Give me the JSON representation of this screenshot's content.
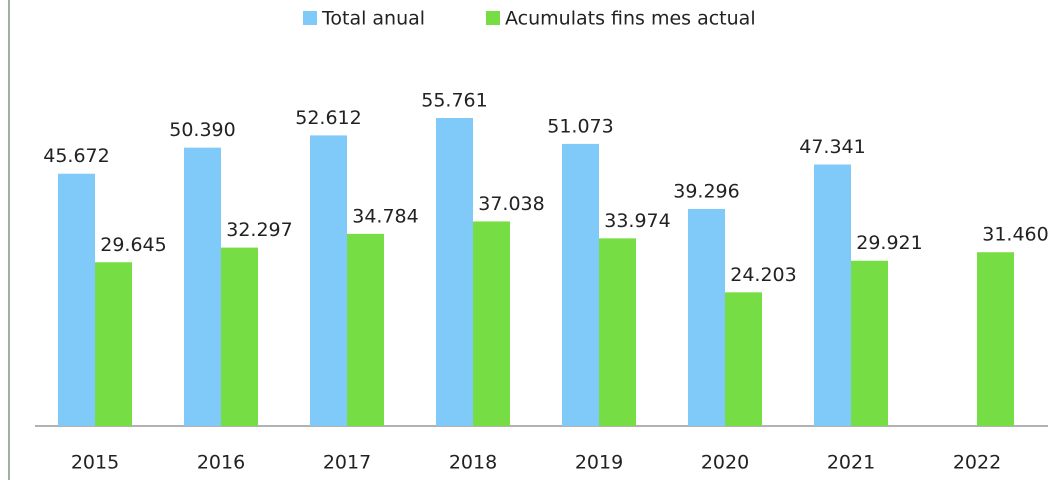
{
  "chart_data": {
    "type": "bar",
    "categories": [
      "2015",
      "2016",
      "2017",
      "2018",
      "2019",
      "2020",
      "2021",
      "2022"
    ],
    "series": [
      {
        "name": "Total anual",
        "color": "#7fcaf8",
        "values": [
          45672,
          50390,
          52612,
          55761,
          51073,
          39296,
          47341,
          null
        ],
        "value_labels": [
          "45.672",
          "50.390",
          "52.612",
          "55.761",
          "51.073",
          "39.296",
          "47.341",
          null
        ]
      },
      {
        "name": "Acumulats fins mes actual",
        "color": "#77dd44",
        "values": [
          29645,
          32297,
          34784,
          37038,
          33974,
          24203,
          29921,
          31460
        ],
        "value_labels": [
          "29.645",
          "32.297",
          "34.784",
          "37.038",
          "33.974",
          "24.203",
          "29.921",
          "31.460"
        ]
      }
    ],
    "legend": "top"
  }
}
